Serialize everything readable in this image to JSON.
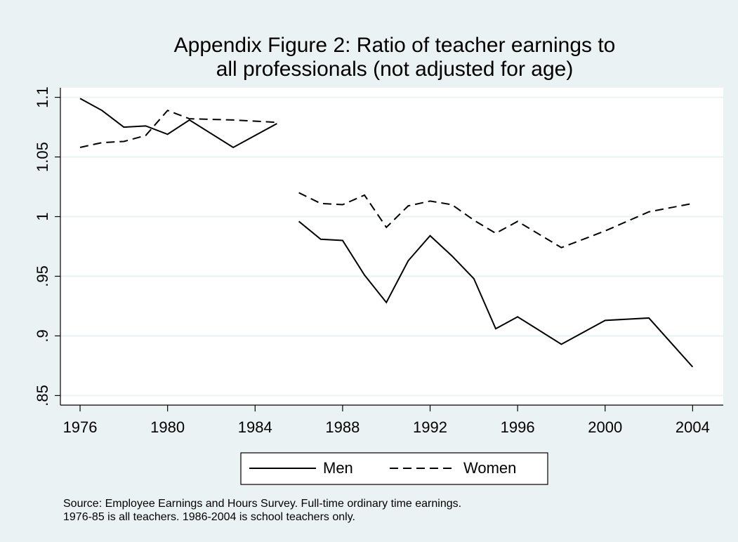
{
  "chart_data": {
    "type": "line",
    "title": [
      "Appendix Figure 2: Ratio of teacher earnings to",
      "all professionals (not adjusted for age)"
    ],
    "note": [
      "Source: Employee Earnings and Hours Survey. Full-time ordinary time earnings.",
      "1976-85 is all teachers. 1986-2004 is school teachers only."
    ],
    "x": [
      1976,
      1977,
      1978,
      1979,
      1980,
      1981,
      1983,
      1985,
      null,
      1986,
      1987,
      1988,
      1989,
      1990,
      1991,
      1992,
      1993,
      1994,
      1995,
      1996,
      1998,
      2000,
      2002,
      2004
    ],
    "series": [
      {
        "name": "Men",
        "color": "#000000",
        "dash": "solid",
        "values": [
          1.099,
          1.089,
          1.075,
          1.076,
          1.069,
          1.081,
          1.058,
          1.078,
          null,
          0.996,
          0.981,
          0.98,
          0.951,
          0.928,
          0.963,
          0.984,
          0.967,
          0.948,
          0.906,
          0.916,
          0.893,
          0.913,
          0.915,
          0.874
        ]
      },
      {
        "name": "Women",
        "color": "#000000",
        "dash": "dashed",
        "values": [
          1.058,
          1.062,
          1.063,
          1.068,
          1.089,
          1.082,
          1.081,
          1.079,
          null,
          1.02,
          1.011,
          1.01,
          1.018,
          0.991,
          1.009,
          1.013,
          1.01,
          0.997,
          0.986,
          0.996,
          0.974,
          0.988,
          1.004,
          1.011
        ]
      }
    ],
    "xlim": [
      1975.1,
      2005.4
    ],
    "xticks": [
      1976,
      1980,
      1984,
      1988,
      1992,
      1996,
      2000,
      2004
    ],
    "ylim": [
      0.842,
      1.108
    ],
    "yticks": [
      {
        "value": 0.85,
        "label": ".85"
      },
      {
        "value": 0.9,
        "label": ".9"
      },
      {
        "value": 0.95,
        "label": ".95"
      },
      1,
      1.05,
      1.1
    ],
    "grid": true
  }
}
